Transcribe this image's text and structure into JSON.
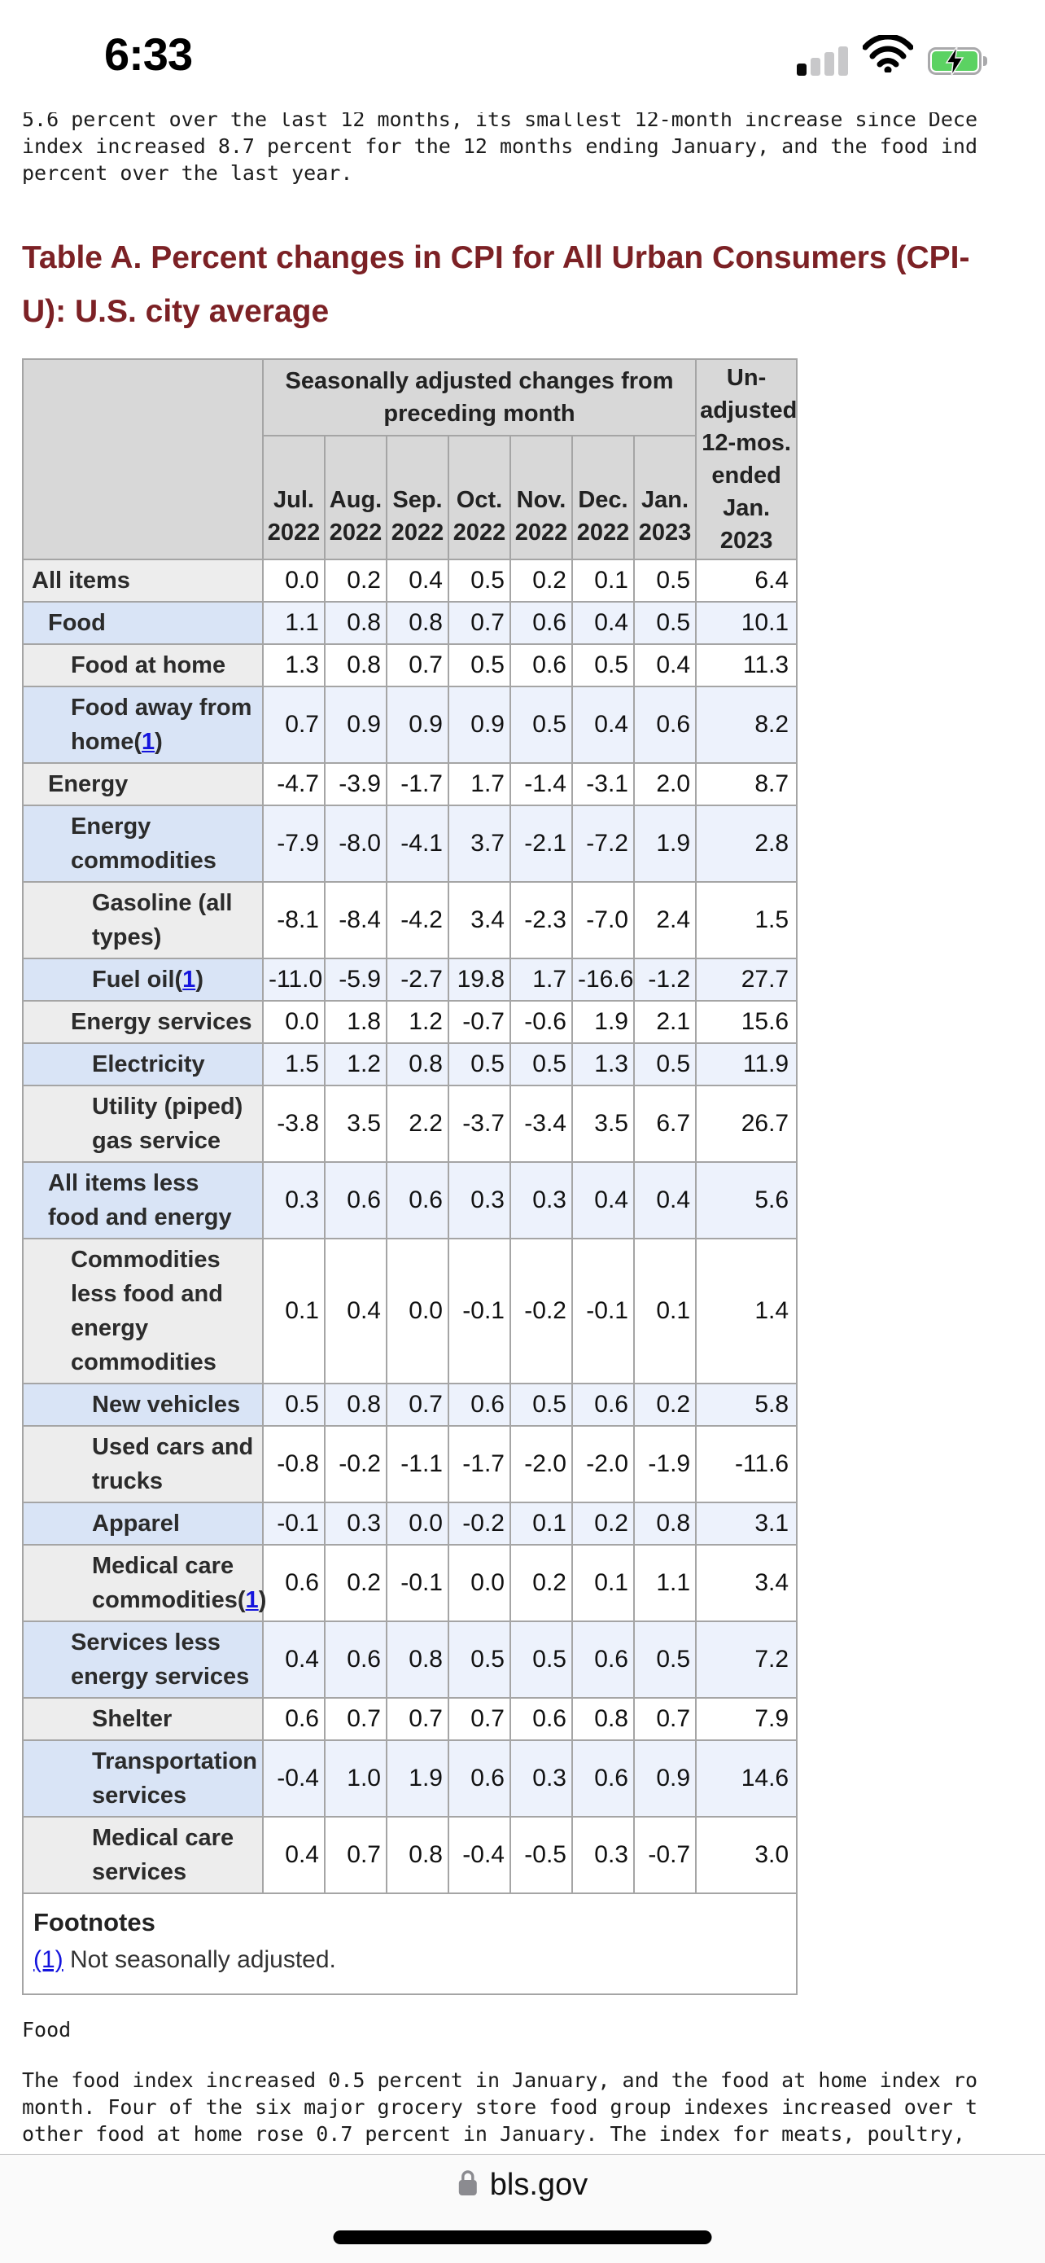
{
  "status_bar": {
    "time": "6:33",
    "icons": [
      "cellular-signal-icon",
      "wifi-icon",
      "battery-charging-icon"
    ],
    "battery_color": "#5bd262",
    "signal_bars_filled": 1,
    "signal_bars_total": 4
  },
  "intro": {
    "lines": [
      "5.6 percent over the last 12 months, its smallest 12-month increase since Dece",
      "index increased 8.7 percent for the 12 months ending January, and the food ind",
      "percent over the last year."
    ]
  },
  "table": {
    "title_lines": [
      "Table A. Percent changes in CPI for All Urban Consumers (CPI-",
      "U): U.S. city average"
    ],
    "title_color": "#7c2125",
    "group_header": "Seasonally adjusted changes from preceding month",
    "unadjusted_header_lines": [
      "Un-",
      "adjusted",
      "12-mos.",
      "ended",
      "Jan.",
      "2023"
    ],
    "months": [
      {
        "m": "Jul.",
        "y": "2022"
      },
      {
        "m": "Aug.",
        "y": "2022"
      },
      {
        "m": "Sep.",
        "y": "2022"
      },
      {
        "m": "Oct.",
        "y": "2022"
      },
      {
        "m": "Nov.",
        "y": "2022"
      },
      {
        "m": "Dec.",
        "y": "2022"
      },
      {
        "m": "Jan.",
        "y": "2023"
      }
    ],
    "rows": [
      {
        "label": "All items",
        "indent": 0,
        "footnote": false,
        "shade": "gray",
        "values": [
          "0.0",
          "0.2",
          "0.4",
          "0.5",
          "0.2",
          "0.1",
          "0.5"
        ],
        "yoy": "6.4"
      },
      {
        "label": "Food",
        "indent": 1,
        "footnote": false,
        "shade": "blue",
        "values": [
          "1.1",
          "0.8",
          "0.8",
          "0.7",
          "0.6",
          "0.4",
          "0.5"
        ],
        "yoy": "10.1"
      },
      {
        "label": "Food at home",
        "indent": 2,
        "footnote": false,
        "shade": "gray",
        "values": [
          "1.3",
          "0.8",
          "0.7",
          "0.5",
          "0.6",
          "0.5",
          "0.4"
        ],
        "yoy": "11.3"
      },
      {
        "label": "Food away from home",
        "indent": 2,
        "footnote": true,
        "shade": "blue",
        "values": [
          "0.7",
          "0.9",
          "0.9",
          "0.9",
          "0.5",
          "0.4",
          "0.6"
        ],
        "yoy": "8.2"
      },
      {
        "label": "Energy",
        "indent": 1,
        "footnote": false,
        "shade": "gray",
        "values": [
          "-4.7",
          "-3.9",
          "-1.7",
          "1.7",
          "-1.4",
          "-3.1",
          "2.0"
        ],
        "yoy": "8.7"
      },
      {
        "label": "Energy commodities",
        "indent": 2,
        "footnote": false,
        "shade": "blue",
        "values": [
          "-7.9",
          "-8.0",
          "-4.1",
          "3.7",
          "-2.1",
          "-7.2",
          "1.9"
        ],
        "yoy": "2.8"
      },
      {
        "label": "Gasoline (all types)",
        "indent": 3,
        "footnote": false,
        "shade": "gray",
        "values": [
          "-8.1",
          "-8.4",
          "-4.2",
          "3.4",
          "-2.3",
          "-7.0",
          "2.4"
        ],
        "yoy": "1.5"
      },
      {
        "label": "Fuel oil",
        "indent": 3,
        "footnote": true,
        "shade": "blue",
        "values": [
          "-11.0",
          "-5.9",
          "-2.7",
          "19.8",
          "1.7",
          "-16.6",
          "-1.2"
        ],
        "yoy": "27.7"
      },
      {
        "label": "Energy services",
        "indent": 2,
        "footnote": false,
        "shade": "gray",
        "values": [
          "0.0",
          "1.8",
          "1.2",
          "-0.7",
          "-0.6",
          "1.9",
          "2.1"
        ],
        "yoy": "15.6"
      },
      {
        "label": "Electricity",
        "indent": 3,
        "footnote": false,
        "shade": "blue",
        "values": [
          "1.5",
          "1.2",
          "0.8",
          "0.5",
          "0.5",
          "1.3",
          "0.5"
        ],
        "yoy": "11.9"
      },
      {
        "label": "Utility (piped) gas service",
        "indent": 3,
        "footnote": false,
        "shade": "gray",
        "values": [
          "-3.8",
          "3.5",
          "2.2",
          "-3.7",
          "-3.4",
          "3.5",
          "6.7"
        ],
        "yoy": "26.7"
      },
      {
        "label": "All items less food and energy",
        "indent": 1,
        "footnote": false,
        "shade": "blue",
        "values": [
          "0.3",
          "0.6",
          "0.6",
          "0.3",
          "0.3",
          "0.4",
          "0.4"
        ],
        "yoy": "5.6"
      },
      {
        "label": "Commodities less food and energy commodities",
        "indent": 2,
        "footnote": false,
        "shade": "gray",
        "values": [
          "0.1",
          "0.4",
          "0.0",
          "-0.1",
          "-0.2",
          "-0.1",
          "0.1"
        ],
        "yoy": "1.4"
      },
      {
        "label": "New vehicles",
        "indent": 3,
        "footnote": false,
        "shade": "blue",
        "values": [
          "0.5",
          "0.8",
          "0.7",
          "0.6",
          "0.5",
          "0.6",
          "0.2"
        ],
        "yoy": "5.8"
      },
      {
        "label": "Used cars and trucks",
        "indent": 3,
        "footnote": false,
        "shade": "gray",
        "values": [
          "-0.8",
          "-0.2",
          "-1.1",
          "-1.7",
          "-2.0",
          "-2.0",
          "-1.9"
        ],
        "yoy": "-11.6"
      },
      {
        "label": "Apparel",
        "indent": 3,
        "footnote": false,
        "shade": "blue",
        "values": [
          "-0.1",
          "0.3",
          "0.0",
          "-0.2",
          "0.1",
          "0.2",
          "0.8"
        ],
        "yoy": "3.1"
      },
      {
        "label": "Medical care commodities",
        "indent": 3,
        "footnote": true,
        "shade": "gray",
        "values": [
          "0.6",
          "0.2",
          "-0.1",
          "0.0",
          "0.2",
          "0.1",
          "1.1"
        ],
        "yoy": "3.4"
      },
      {
        "label": "Services less energy services",
        "indent": 2,
        "footnote": false,
        "shade": "blue",
        "values": [
          "0.4",
          "0.6",
          "0.8",
          "0.5",
          "0.5",
          "0.6",
          "0.5"
        ],
        "yoy": "7.2"
      },
      {
        "label": "Shelter",
        "indent": 3,
        "footnote": false,
        "shade": "gray",
        "values": [
          "0.6",
          "0.7",
          "0.7",
          "0.7",
          "0.6",
          "0.8",
          "0.7"
        ],
        "yoy": "7.9"
      },
      {
        "label": "Transportation services",
        "indent": 3,
        "footnote": false,
        "shade": "blue",
        "values": [
          "-0.4",
          "1.0",
          "1.9",
          "0.6",
          "0.3",
          "0.6",
          "0.9"
        ],
        "yoy": "14.6"
      },
      {
        "label": "Medical care services",
        "indent": 3,
        "footnote": false,
        "shade": "gray",
        "values": [
          "0.4",
          "0.7",
          "0.8",
          "-0.4",
          "-0.5",
          "0.3",
          "-0.7"
        ],
        "yoy": "3.0"
      }
    ],
    "footnote_ref_label": "1",
    "footnotes_title": "Footnotes",
    "footnote_link": "(1)",
    "footnote_text": " Not seasonally adjusted.",
    "colors": {
      "header_bg": "#d8d8d8",
      "gray_label_bg": "#ededed",
      "blue_label_bg": "#d9e4f6",
      "blue_data_bg": "#edf2fc",
      "border": "#a5a5a5",
      "link": "#1414dd"
    }
  },
  "sections": {
    "food_heading": "Food",
    "paragraph_lines": [
      "The food index increased 0.5 percent in January, and the food at home index ro",
      "month. Four of the six major grocery store food group indexes increased over t",
      "other food at home rose 0.7 percent in January. The index for meats, poultry, "
    ]
  },
  "browser_bar": {
    "url_label": "bls.gov",
    "lock_icon": "lock-icon"
  }
}
